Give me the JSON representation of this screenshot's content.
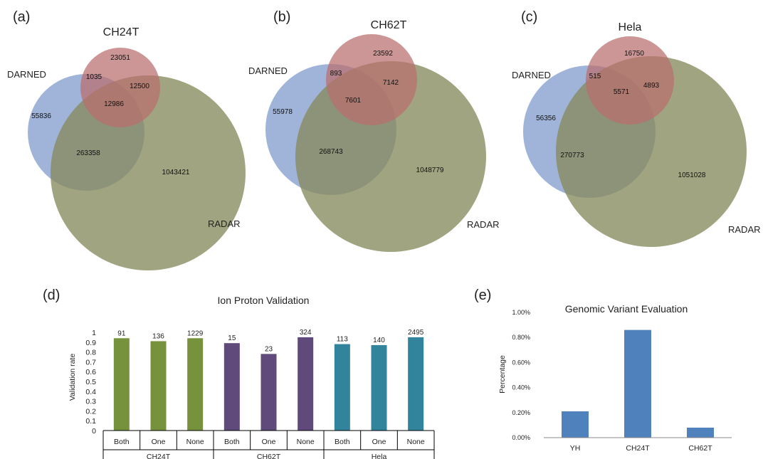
{
  "venn_panels": [
    {
      "panel_label": "(a)",
      "title": "CH24T",
      "set_labels": {
        "darned": "DARNED",
        "radar": "RADAR"
      },
      "regions": {
        "darned_only": "55836",
        "top_only": "23051",
        "radar_only": "1043421",
        "darned_top": "1035",
        "top_radar": "12500",
        "darned_radar": "263358",
        "all_three": "12986"
      }
    },
    {
      "panel_label": "(b)",
      "title": "CH62T",
      "set_labels": {
        "darned": "DARNED",
        "radar": "RADAR"
      },
      "regions": {
        "darned_only": "55978",
        "top_only": "23592",
        "radar_only": "1048779",
        "darned_top": "893",
        "top_radar": "7142",
        "darned_radar": "268743",
        "all_three": "7601"
      }
    },
    {
      "panel_label": "(c)",
      "title": "Hela",
      "set_labels": {
        "darned": "DARNED",
        "radar": "RADAR"
      },
      "regions": {
        "darned_only": "56356",
        "top_only": "16750",
        "radar_only": "1051028",
        "darned_top": "515",
        "top_radar": "4893",
        "darned_radar": "270773",
        "all_three": "5571"
      }
    }
  ],
  "colors": {
    "darned": "#7b95c9",
    "top": "#b86e6e",
    "radar": "#868a5c",
    "green": "#76923c",
    "purple": "#604a7b",
    "teal": "#31849b",
    "blue": "#4f81bd"
  },
  "chart_data": [
    {
      "type": "bar",
      "panel_label": "(d)",
      "title": "Ion Proton Validation",
      "ylabel": "Validation rate",
      "ylim": [
        0,
        1
      ],
      "yticks": [
        "0",
        "0.1",
        "0.2",
        "0.3",
        "0.4",
        "0.5",
        "0.6",
        "0.7",
        "0.8",
        "0.9",
        "1"
      ],
      "categories": [
        "Both",
        "One",
        "None",
        "Both",
        "One",
        "None",
        "Both",
        "One",
        "None"
      ],
      "groups": [
        "CH24T",
        "CH62T",
        "Hela"
      ],
      "values": [
        0.94,
        0.91,
        0.94,
        0.89,
        0.78,
        0.95,
        0.88,
        0.87,
        0.95
      ],
      "data_labels": [
        "91",
        "136",
        "1229",
        "15",
        "23",
        "324",
        "113",
        "140",
        "2495"
      ],
      "bar_colors": [
        "green",
        "green",
        "green",
        "purple",
        "purple",
        "purple",
        "teal",
        "teal",
        "teal"
      ],
      "grid": false
    },
    {
      "type": "bar",
      "panel_label": "(e)",
      "title": "Genomic Variant Evaluation",
      "ylabel": "Percentage",
      "ylim": [
        0,
        1.0
      ],
      "yticks": [
        "0.00%",
        "0.20%",
        "0.40%",
        "0.60%",
        "0.80%",
        "1.00%"
      ],
      "categories": [
        "YH",
        "CH24T",
        "CH62T"
      ],
      "values": [
        0.21,
        0.86,
        0.08
      ],
      "bar_colors": [
        "blue",
        "blue",
        "blue"
      ],
      "grid": false
    }
  ]
}
